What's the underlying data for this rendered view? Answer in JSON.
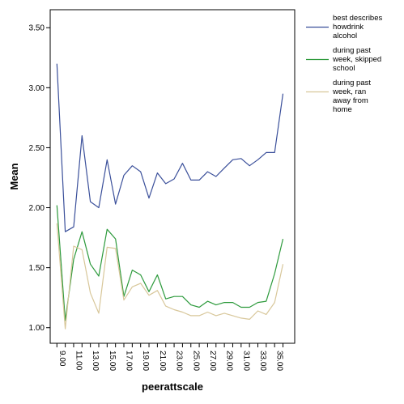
{
  "chart_data": {
    "type": "line",
    "xlabel": "peerattscale",
    "ylabel": "Mean",
    "ylim": [
      0.87,
      3.65
    ],
    "y_ticks": [
      "1.00",
      "1.50",
      "2.00",
      "2.50",
      "3.00",
      "3.50"
    ],
    "x_tick_labels": [
      "9.00",
      "11.00",
      "13.00",
      "15.00",
      "17.00",
      "19.00",
      "21.00",
      "23.00",
      "25.00",
      "27.00",
      "29.00",
      "31.00",
      "33.00",
      "35.00"
    ],
    "x": [
      9,
      10,
      11,
      12,
      13,
      14,
      15,
      16,
      17,
      18,
      19,
      20,
      21,
      22,
      23,
      24,
      25,
      26,
      27,
      28,
      29,
      30,
      31,
      32,
      33,
      34,
      35,
      36
    ],
    "legend_position": "right",
    "grid": false,
    "series": [
      {
        "name": "best describes howdrink alcohol",
        "legend_lines": [
          "best describes",
          "howdrink",
          "alcohol"
        ],
        "color": "#3a4f9a",
        "values": [
          3.2,
          1.8,
          1.84,
          2.6,
          2.05,
          2.0,
          2.4,
          2.03,
          2.27,
          2.35,
          2.3,
          2.08,
          2.29,
          2.2,
          2.24,
          2.37,
          2.23,
          2.23,
          2.3,
          2.26,
          2.33,
          2.4,
          2.41,
          2.35,
          2.4,
          2.46,
          2.46,
          2.95
        ]
      },
      {
        "name": "during past week, skipped school",
        "legend_lines": [
          "during past",
          "week, skipped",
          "school"
        ],
        "color": "#2d9a3c",
        "values": [
          2.02,
          1.06,
          1.57,
          1.8,
          1.53,
          1.43,
          1.82,
          1.74,
          1.26,
          1.48,
          1.44,
          1.3,
          1.44,
          1.24,
          1.26,
          1.26,
          1.19,
          1.17,
          1.22,
          1.19,
          1.21,
          1.21,
          1.17,
          1.17,
          1.21,
          1.22,
          1.45,
          1.74
        ]
      },
      {
        "name": "during past week, ran away from home",
        "legend_lines": [
          "during past",
          "week, ran",
          "away from",
          "home"
        ],
        "color": "#d8c79a",
        "values": [
          1.87,
          0.99,
          1.68,
          1.65,
          1.29,
          1.12,
          1.67,
          1.66,
          1.23,
          1.34,
          1.37,
          1.27,
          1.31,
          1.18,
          1.15,
          1.13,
          1.1,
          1.1,
          1.13,
          1.1,
          1.12,
          1.1,
          1.08,
          1.07,
          1.14,
          1.11,
          1.21,
          1.53
        ]
      }
    ]
  }
}
